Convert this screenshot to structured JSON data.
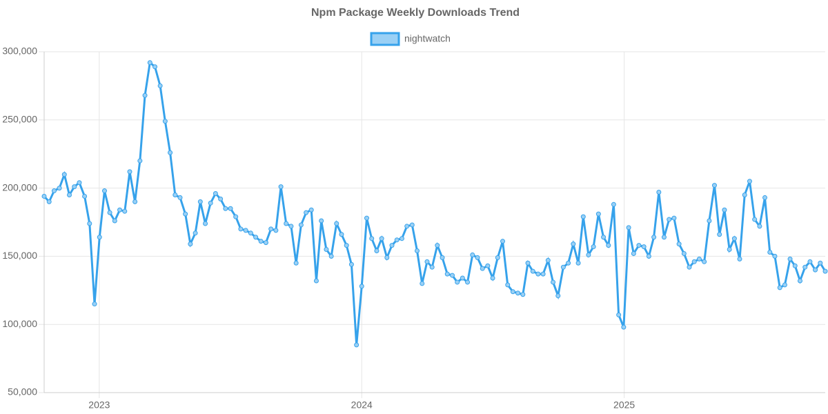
{
  "chart_data": {
    "type": "line",
    "title": "Npm Package Weekly Downloads Trend",
    "legend": "top",
    "grid": true,
    "xlim": [
      2022.79,
      2025.766
    ],
    "xticks": [
      2023,
      2024,
      2025
    ],
    "ylim": [
      50000,
      300000
    ],
    "yticks": [
      {
        "value": 50000,
        "label": "50,000"
      },
      {
        "value": 100000,
        "label": "100,000"
      },
      {
        "value": 150000,
        "label": "150,000"
      },
      {
        "value": 200000,
        "label": "200,000"
      },
      {
        "value": 250000,
        "label": "250,000"
      },
      {
        "value": 300000,
        "label": "300,000"
      }
    ],
    "x": [
      2022.79,
      2022.809,
      2022.828,
      2022.848,
      2022.867,
      2022.886,
      2022.905,
      2022.924,
      2022.944,
      2022.963,
      2022.982,
      2023.001,
      2023.02,
      2023.04,
      2023.059,
      2023.078,
      2023.097,
      2023.116,
      2023.136,
      2023.155,
      2023.174,
      2023.193,
      2023.212,
      2023.232,
      2023.251,
      2023.27,
      2023.289,
      2023.308,
      2023.328,
      2023.347,
      2023.366,
      2023.385,
      2023.404,
      2023.424,
      2023.443,
      2023.462,
      2023.481,
      2023.5,
      2023.52,
      2023.539,
      2023.558,
      2023.577,
      2023.596,
      2023.616,
      2023.635,
      2023.654,
      2023.673,
      2023.692,
      2023.712,
      2023.731,
      2023.75,
      2023.769,
      2023.788,
      2023.808,
      2023.827,
      2023.846,
      2023.865,
      2023.884,
      2023.904,
      2023.923,
      2023.942,
      2023.961,
      2023.98,
      2024.0,
      2024.019,
      2024.038,
      2024.057,
      2024.076,
      2024.096,
      2024.115,
      2024.134,
      2024.153,
      2024.172,
      2024.192,
      2024.211,
      2024.23,
      2024.249,
      2024.268,
      2024.288,
      2024.307,
      2024.326,
      2024.345,
      2024.364,
      2024.384,
      2024.403,
      2024.422,
      2024.441,
      2024.46,
      2024.48,
      2024.499,
      2024.518,
      2024.537,
      2024.556,
      2024.576,
      2024.595,
      2024.614,
      2024.633,
      2024.652,
      2024.672,
      2024.691,
      2024.71,
      2024.729,
      2024.748,
      2024.768,
      2024.787,
      2024.806,
      2024.825,
      2024.844,
      2024.864,
      2024.883,
      2024.902,
      2024.921,
      2024.94,
      2024.96,
      2024.979,
      2024.998,
      2025.017,
      2025.036,
      2025.056,
      2025.075,
      2025.094,
      2025.113,
      2025.132,
      2025.152,
      2025.171,
      2025.19,
      2025.209,
      2025.228,
      2025.248,
      2025.267,
      2025.286,
      2025.305,
      2025.324,
      2025.344,
      2025.363,
      2025.382,
      2025.401,
      2025.42,
      2025.44,
      2025.459,
      2025.478,
      2025.497,
      2025.516,
      2025.536,
      2025.555,
      2025.574,
      2025.593,
      2025.612,
      2025.632,
      2025.651,
      2025.67,
      2025.689,
      2025.708,
      2025.728,
      2025.747,
      2025.766
    ],
    "series": [
      {
        "name": "nightwatch",
        "color": "#36a2eb",
        "fill": "#9ad0f5",
        "values": [
          194000,
          190000,
          198000,
          200000,
          210000,
          195000,
          201000,
          204000,
          194000,
          174000,
          115000,
          164000,
          198000,
          182000,
          176000,
          184000,
          183000,
          212000,
          190000,
          220000,
          268000,
          292000,
          289000,
          275000,
          249000,
          226000,
          195000,
          193000,
          181000,
          159000,
          167000,
          190000,
          174000,
          189000,
          196000,
          192000,
          185000,
          185000,
          179000,
          170000,
          169000,
          167000,
          164000,
          161000,
          160000,
          170000,
          169000,
          201000,
          174000,
          172000,
          145000,
          173000,
          182000,
          184000,
          132000,
          176000,
          155000,
          150000,
          174000,
          166000,
          158000,
          144000,
          85000,
          128000,
          178000,
          163000,
          154000,
          163000,
          149000,
          158000,
          162000,
          163000,
          172000,
          173000,
          154000,
          130000,
          146000,
          142000,
          158000,
          149000,
          137000,
          136000,
          131000,
          134000,
          131000,
          151000,
          149000,
          141000,
          143000,
          134000,
          149000,
          161000,
          129000,
          124000,
          123000,
          122000,
          145000,
          139000,
          137000,
          137000,
          147000,
          131000,
          121000,
          142000,
          145000,
          159000,
          145000,
          179000,
          151000,
          157000,
          181000,
          164000,
          158000,
          188000,
          107000,
          98000,
          171000,
          152000,
          158000,
          157000,
          150000,
          164000,
          197000,
          164000,
          177000,
          178000,
          159000,
          152000,
          142000,
          146000,
          148000,
          146000,
          176000,
          202000,
          166000,
          184000,
          155000,
          163000,
          148000,
          195000,
          205000,
          177000,
          172000,
          193000,
          153000,
          150000,
          127000,
          129000,
          148000,
          143000,
          132000,
          142000,
          146000,
          140000,
          145000,
          139000
        ]
      }
    ]
  }
}
